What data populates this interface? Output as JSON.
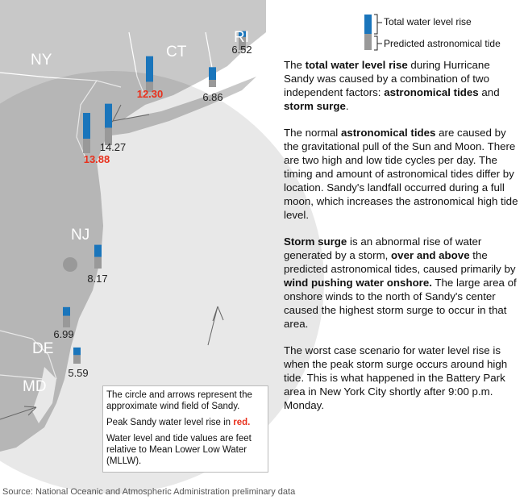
{
  "header": {
    "legend_total": "Total water level rise",
    "legend_tide": "Predicted astronomical tide"
  },
  "states": [
    "NY",
    "CT",
    "RI",
    "NJ",
    "DE",
    "MD"
  ],
  "stations": [
    {
      "value": 6.52,
      "tide": 4.5,
      "label_color": "#222"
    },
    {
      "value": 12.3,
      "tide": 3.5,
      "label_color": "#e8301c"
    },
    {
      "value": 6.86,
      "tide": 2.5,
      "label_color": "#222"
    },
    {
      "value": 14.27,
      "tide": 6,
      "label_color": "#222"
    },
    {
      "value": 13.88,
      "tide": 5,
      "label_color": "#e8301c"
    },
    {
      "value": 8.17,
      "tide": 4,
      "label_color": "#222"
    },
    {
      "value": 6.99,
      "tide": 4,
      "label_color": "#222"
    },
    {
      "value": 5.59,
      "tide": 3,
      "label_color": "#222"
    }
  ],
  "paragraphs": [
    [
      {
        "text": "The "
      },
      {
        "text": "total water level rise",
        "bold": true
      },
      {
        "text": " during Hurricane Sandy was caused by a combination of two independent factors: "
      },
      {
        "text": "astronomical tides",
        "bold": true
      },
      {
        "text": " and "
      },
      {
        "text": "storm surge",
        "bold": true
      },
      {
        "text": "."
      }
    ],
    [
      {
        "text": "The normal "
      },
      {
        "text": "astronomical tides",
        "bold": true
      },
      {
        "text": " are caused by the gravitational pull of the Sun and Moon. There are two high and low tide cycles per day. The timing and amount of astronomical tides differ by location. Sandy's landfall occurred during a full moon, which increases the astronomical high tide level."
      }
    ],
    [
      {
        "text": "Storm surge",
        "bold": true
      },
      {
        "text": " is an abnormal rise of water generated by a storm, "
      },
      {
        "text": "over and above",
        "bold": true
      },
      {
        "text": " the predicted astronomical tides, caused primarily by "
      },
      {
        "text": "wind pushing water onshore.",
        "bold": true
      },
      {
        "text": " The large area of onshore winds to the north of Sandy's center caused the highest storm surge to occur in that area."
      }
    ],
    [
      {
        "text": "The worst case scenario for water level rise is when the peak storm surge occurs around high tide. This is what happened in the Battery Park area in New York City shortly after 9:00 p.m. Monday."
      }
    ]
  ],
  "note": {
    "line1": "The circle and arrows represent the approximate wind field of Sandy.",
    "line2": "Peak Sandy water level rise in ",
    "line2_red": "red.",
    "line3": "Water level and tide values are feet relative to Mean Lower Low Water (MLLW)."
  },
  "source": "Source: National Oceanic and Atmospheric Administration preliminary data"
}
